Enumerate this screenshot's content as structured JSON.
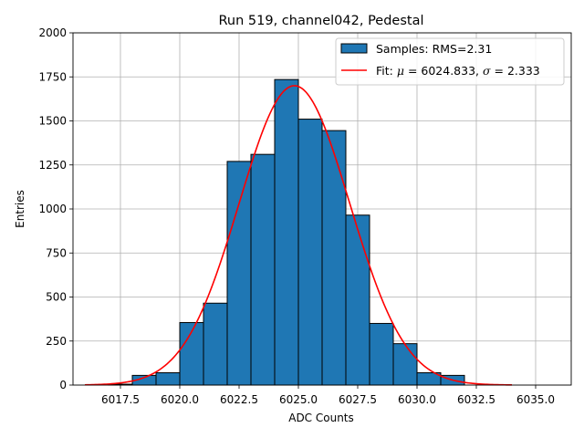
{
  "chart_data": {
    "type": "bar",
    "title": "Run 519, channel042, Pedestal",
    "xlabel": "ADC Counts",
    "ylabel": "Entries",
    "xlim": [
      6015.5,
      6036.5
    ],
    "ylim": [
      0,
      2000
    ],
    "grid": true,
    "legend_position": "top-right",
    "xticks": [
      "6017.5",
      "6020.0",
      "6022.5",
      "6025.0",
      "6027.5",
      "6030.0",
      "6032.5",
      "6035.0"
    ],
    "xtick_values": [
      6017.5,
      6020.0,
      6022.5,
      6025.0,
      6027.5,
      6030.0,
      6032.5,
      6035.0
    ],
    "yticks": [
      "0",
      "250",
      "500",
      "750",
      "1000",
      "1250",
      "1500",
      "1750",
      "2000"
    ],
    "ytick_values": [
      0,
      250,
      500,
      750,
      1000,
      1250,
      1500,
      1750,
      2000
    ],
    "histogram": {
      "label": "Samples: RMS=2.31",
      "color": "#1f77b4",
      "edge_color": "#000000",
      "bin_edges": [
        6017.0,
        6018.0,
        6019.0,
        6020.0,
        6021.0,
        6022.0,
        6023.0,
        6024.0,
        6025.0,
        6026.0,
        6027.0,
        6028.0,
        6029.0,
        6030.0,
        6031.0,
        6032.0
      ],
      "counts": [
        5,
        55,
        70,
        355,
        465,
        1270,
        1310,
        1735,
        1510,
        1445,
        965,
        350,
        235,
        70,
        55
      ]
    },
    "fit": {
      "label": "Fit: μ = 6024.833, σ = 2.333",
      "label_prefix": "Fit: ",
      "mu_symbol": "μ",
      "mu_text": " = 6024.833, ",
      "sigma_symbol": "σ",
      "sigma_text": " = 2.333",
      "color": "#ff0000",
      "mu": 6024.833,
      "sigma": 2.333,
      "amplitude": 1700,
      "x_range": [
        6016.0,
        6034.0
      ]
    }
  }
}
